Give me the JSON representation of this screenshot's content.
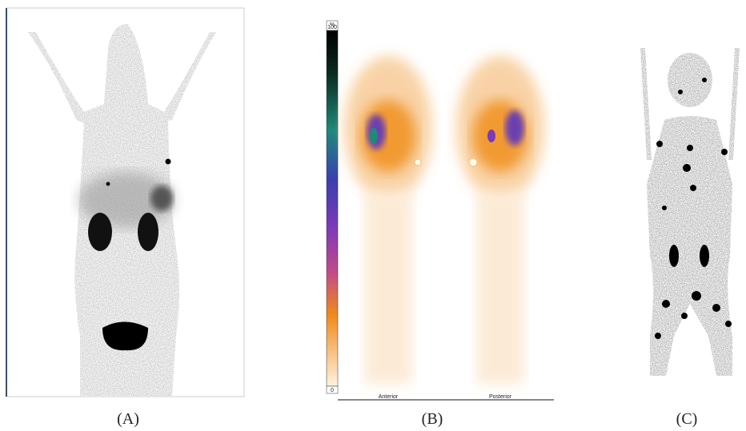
{
  "panels": [
    {
      "label": "(A)"
    },
    {
      "label": "(B)",
      "scale_unit": "%",
      "scale_max": 100,
      "scale_min": 0,
      "views": [
        "Anterior",
        "Posterior"
      ]
    },
    {
      "label": "(C)"
    }
  ]
}
